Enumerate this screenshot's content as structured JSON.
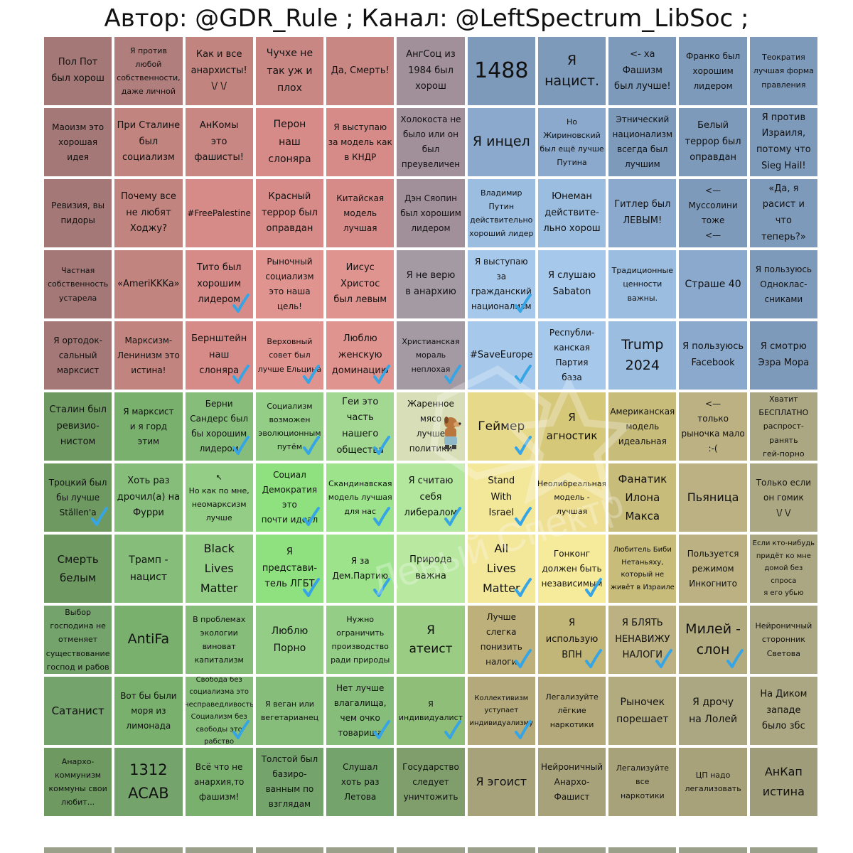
{
  "title": "Автор: @GDR_Rule ; Канал: @LeftSpectrum_LibSoc ;",
  "colors": {
    "auth_left_dark": "#a87c7c",
    "auth_left": "#cf8a8a",
    "auth_center": "#a0909a",
    "auth_right_dark": "#7e9cbd",
    "auth_right": "#9bbde0",
    "lib_left_dark": "#74a36c",
    "lib_left": "#86c97d",
    "lib_left_bright": "#8fd67f",
    "lib_right_dark": "#b3b083",
    "lib_right": "#f0e28c",
    "checkmark": "#36a5e6",
    "watermark": "Левый Спектр"
  },
  "rows": [
    [
      {
        "text": "Пол Пот\nбыл хорош",
        "bg": "#a47876",
        "fs": 13,
        "check": false
      },
      {
        "text": "Я против любой\nсобственности,\nдаже личной",
        "bg": "#b07e7c",
        "fs": 11,
        "check": false
      },
      {
        "text": "Как и все\nанархисты!\n\\/ \\/",
        "bg": "#c2847f",
        "fs": 13,
        "check": false
      },
      {
        "text": "Чучхе не\nтак уж и\nплох",
        "bg": "#c98784",
        "fs": 14,
        "check": false
      },
      {
        "text": "Да, Смерть!",
        "bg": "#c98784",
        "fs": 13,
        "check": false
      },
      {
        "text": "АнгСоц из\n1984 был\nхорош",
        "bg": "#a18f9a",
        "fs": 13,
        "check": false
      },
      {
        "text": "1488",
        "bg": "#7e9aba",
        "fs": 30,
        "check": false
      },
      {
        "text": "Я\nнацист.",
        "bg": "#7e9aba",
        "fs": 19,
        "check": false
      },
      {
        "text": "<- ха\nФашизм\nбыл лучше!",
        "bg": "#7e9aba",
        "fs": 13,
        "check": false
      },
      {
        "text": "Франко был\nхорошим\nлидером",
        "bg": "#7e9aba",
        "fs": 12,
        "check": false
      },
      {
        "text": "Теократия\nлучшая форма\nправления",
        "bg": "#7e9aba",
        "fs": 11,
        "check": false
      }
    ],
    [
      {
        "text": "Маоизм это\nхорошая\nидея",
        "bg": "#a47876",
        "fs": 12,
        "check": false
      },
      {
        "text": "При Сталине\nбыл\nсоциализм",
        "bg": "#c2847f",
        "fs": 13,
        "check": false
      },
      {
        "text": "АнКомы\nэто\nфашисты!",
        "bg": "#c98784",
        "fs": 13,
        "check": false
      },
      {
        "text": "Перон\nнаш\nслоняра",
        "bg": "#d68b88",
        "fs": 14,
        "check": false
      },
      {
        "text": "Я выступаю\nза модель как\nв КНДР",
        "bg": "#d68b88",
        "fs": 12,
        "check": false
      },
      {
        "text": "Холокоста не\nбыло или он\nбыл\nпреувеличен",
        "bg": "#a18f9a",
        "fs": 12,
        "check": false
      },
      {
        "text": "Я инцел",
        "bg": "#8aa9cc",
        "fs": 19,
        "check": false
      },
      {
        "text": "Но\nЖириновский\nбыл ещё лучше\nПутина",
        "bg": "#8aa9cc",
        "fs": 11,
        "check": false
      },
      {
        "text": "Этнический\nнационализм\nвсегда был\nлучшим",
        "bg": "#7e9aba",
        "fs": 12,
        "check": false
      },
      {
        "text": "Белый\nтеррор был\nоправдан",
        "bg": "#7e9aba",
        "fs": 13,
        "check": false
      },
      {
        "text": "Я против\nИзраиля,\nпотому что\nSieg Hail!",
        "bg": "#7e9aba",
        "fs": 13,
        "check": false
      }
    ],
    [
      {
        "text": "Ревизия, вы\nпидоры",
        "bg": "#a47876",
        "fs": 12,
        "check": false
      },
      {
        "text": "Почему все\nне любят\nХоджу?",
        "bg": "#c2847f",
        "fs": 13,
        "check": false
      },
      {
        "text": "#FreePalestine",
        "bg": "#d68b88",
        "fs": 12,
        "check": false
      },
      {
        "text": "Красный\nтеррор был\nоправдан",
        "bg": "#d68b88",
        "fs": 13,
        "check": false
      },
      {
        "text": "Китайская\nмодель\nлучшая",
        "bg": "#d68b88",
        "fs": 12,
        "check": false
      },
      {
        "text": "Дэн Сяопин\nбыл хорошим\nлидером",
        "bg": "#a18f9a",
        "fs": 12,
        "check": false
      },
      {
        "text": "Владимир\nПутин\nдействительно\nхороший лидер",
        "bg": "#9bbde0",
        "fs": 11,
        "check": false
      },
      {
        "text": "Юнеман\nдействите-\nльно хорош",
        "bg": "#9bbde0",
        "fs": 13,
        "check": false
      },
      {
        "text": "Гитлер был\nЛЕВЫМ!",
        "bg": "#8aa9cc",
        "fs": 13,
        "check": false
      },
      {
        "text": "<—\nМуссолини\nтоже\n<—",
        "bg": "#7e9aba",
        "fs": 12,
        "check": false
      },
      {
        "text": "«Да, я\nрасист и\nчто\nтеперь?»",
        "bg": "#7e9aba",
        "fs": 13,
        "check": false
      }
    ],
    [
      {
        "text": "Частная\nсобственность\nустарела",
        "bg": "#a47876",
        "fs": 11,
        "check": false
      },
      {
        "text": "«AmeriKKKa»",
        "bg": "#c2847f",
        "fs": 13,
        "check": false
      },
      {
        "text": "Тито был\nхорошим\nлидером",
        "bg": "#d68b88",
        "fs": 13,
        "check": true
      },
      {
        "text": "Рыночный\nсоциализм\nэто наша\nцель!",
        "bg": "#e09490",
        "fs": 12,
        "check": false
      },
      {
        "text": "Иисус\nХристос\nбыл левым",
        "bg": "#e09490",
        "fs": 13,
        "check": false
      },
      {
        "text": "Я не верю\nв анархию",
        "bg": "#a49aa4",
        "fs": 13,
        "check": false
      },
      {
        "text": "Я выступаю\nза\nгражданский\nнационализм",
        "bg": "#a6c8ea",
        "fs": 12,
        "check": true
      },
      {
        "text": "Я слушаю\nSabaton",
        "bg": "#a6c8ea",
        "fs": 13,
        "check": false
      },
      {
        "text": "Традиционные\nценности\nважны.",
        "bg": "#9bbde0",
        "fs": 11,
        "check": false
      },
      {
        "text": "Страше 40",
        "bg": "#8aa9cc",
        "fs": 14,
        "check": false
      },
      {
        "text": "Я пользуюсь\nОдноклас-\nсниками",
        "bg": "#7e9aba",
        "fs": 12,
        "check": false
      }
    ],
    [
      {
        "text": "Я ортодок-\nсальный\nмарксист",
        "bg": "#a47876",
        "fs": 12,
        "check": false
      },
      {
        "text": "Марксизм-\nЛенинизм это\nистина!",
        "bg": "#c2847f",
        "fs": 12,
        "check": false
      },
      {
        "text": "Бернштейн\nнаш\nслоняра",
        "bg": "#d68b88",
        "fs": 13,
        "check": true
      },
      {
        "text": "Верховный\nсовет был\nлучше Ельцина",
        "bg": "#e09490",
        "fs": 11,
        "check": true
      },
      {
        "text": "Люблю\nженскую\nдоминацию",
        "bg": "#e09490",
        "fs": 13,
        "check": true
      },
      {
        "text": "Христианская\nмораль\nнеплохая",
        "bg": "#a49aa4",
        "fs": 11,
        "check": true
      },
      {
        "text": "#SaveEurope",
        "bg": "#a6c8ea",
        "fs": 13,
        "check": true
      },
      {
        "text": "Республи-\nканская\nПартия\nбаза",
        "bg": "#a6c8ea",
        "fs": 12,
        "check": false
      },
      {
        "text": "Trump\n2024",
        "bg": "#9bbde0",
        "fs": 19,
        "check": false
      },
      {
        "text": "Я пользуюсь\nFacebook",
        "bg": "#8aa9cc",
        "fs": 13,
        "check": false
      },
      {
        "text": "Я смотрю\nЭзра Мора",
        "bg": "#7e9aba",
        "fs": 13,
        "check": false
      }
    ],
    [
      {
        "text": "Сталин был\nревизио-\nнистом",
        "bg": "#6e9a62",
        "fs": 13,
        "check": false
      },
      {
        "text": "Я марксист\nи я горд\nэтим",
        "bg": "#7ab06e",
        "fs": 12,
        "check": false
      },
      {
        "text": "Берни\nСандерс был\nбы хорошим\nлидером",
        "bg": "#86bd7a",
        "fs": 12,
        "check": true
      },
      {
        "text": "Социализм\nвозможен\nэволюционным\nпутём",
        "bg": "#94cd86",
        "fs": 11,
        "check": true
      },
      {
        "text": "Геи это\nчасть\nнашего\nобщества",
        "bg": "#a3d892",
        "fs": 13,
        "check": true
      },
      {
        "text": "Жаренное\nмясо\nлучше\nполитики",
        "bg": "#d8dfb8",
        "fs": 12,
        "check": false,
        "dog": true
      },
      {
        "text": "Геймер",
        "bg": "#e7d98a",
        "fs": 17,
        "check": true
      },
      {
        "text": "Я\nагностик",
        "bg": "#d6c879",
        "fs": 15,
        "check": false
      },
      {
        "text": "Американская\nмодель\nидеальная",
        "bg": "#c8bc7a",
        "fs": 12,
        "check": false
      },
      {
        "text": "<—\nтолько\nрыночка мало\n:-(",
        "bg": "#bbb182",
        "fs": 12,
        "check": false
      },
      {
        "text": "Хватит\nБЕСПЛАТНО\nраспрост-\nранять\nгей-порно",
        "bg": "#aba782",
        "fs": 11,
        "check": false
      }
    ],
    [
      {
        "text": "Троцкий был\nбы лучше\nStällen'a",
        "bg": "#6e9a62",
        "fs": 12,
        "check": true
      },
      {
        "text": "Хоть раз\nдрочил(а) на\nФурри",
        "bg": "#86bd7a",
        "fs": 13,
        "check": false
      },
      {
        "text": "↖\nНо как по мне,\nнеомарксизм\nлучше",
        "bg": "#94cd86",
        "fs": 11,
        "check": false
      },
      {
        "text": "Социал\nДемократия\nэто\nпочти идеал",
        "bg": "#8fe07e",
        "fs": 12,
        "check": true
      },
      {
        "text": "Скандинавская\nмодель лучшая\nдля нас",
        "bg": "#9de38c",
        "fs": 11,
        "check": true
      },
      {
        "text": "Я считаю\nсебя\nлибералом",
        "bg": "#b3e79d",
        "fs": 13,
        "check": true
      },
      {
        "text": "Stand\nWith\nIsrael",
        "bg": "#f3e79a",
        "fs": 13,
        "check": true
      },
      {
        "text": "Неолибреальная\nмодель -\nлучшая",
        "bg": "#eedf92",
        "fs": 11,
        "check": false
      },
      {
        "text": "Фанатик\nИлона\nМакса",
        "bg": "#c8bc7a",
        "fs": 15,
        "check": false
      },
      {
        "text": "Пьяница",
        "bg": "#bbb182",
        "fs": 16,
        "check": false
      },
      {
        "text": "Только если\nон гомик\n\\/ \\/",
        "bg": "#aba782",
        "fs": 12,
        "check": false
      }
    ],
    [
      {
        "text": "Смерть\nбелым",
        "bg": "#6e9a62",
        "fs": 15,
        "check": false
      },
      {
        "text": "Трамп -\nнацист",
        "bg": "#86bd7a",
        "fs": 14,
        "check": false
      },
      {
        "text": "Black\nLives\nMatter",
        "bg": "#94cd86",
        "fs": 16,
        "check": false
      },
      {
        "text": "Я\nпредстави-\nтель ЛГБТ",
        "bg": "#8fe07e",
        "fs": 13,
        "check": true
      },
      {
        "text": "Я за\nДем.Партию",
        "bg": "#9de38c",
        "fs": 12,
        "check": true
      },
      {
        "text": "Природа\nважна",
        "bg": "#b9e8a0",
        "fs": 13,
        "check": false
      },
      {
        "text": "All\nLives\nMatter",
        "bg": "#f3e79a",
        "fs": 16,
        "check": true
      },
      {
        "text": "Гонконг\nдолжен быть\nнезависимым",
        "bg": "#f6ea9b",
        "fs": 12,
        "check": true
      },
      {
        "text": "Любитель Биби\nНетаньяху,\nкоторый не\nживёт в Израиле",
        "bg": "#c8bc7a",
        "fs": 10,
        "check": false
      },
      {
        "text": "Пользуется\nрежимом\nИнкогнито",
        "bg": "#bbb182",
        "fs": 12,
        "check": false
      },
      {
        "text": "Если кто-нибудь\nпридёт ко мне\nдомой без спроса\nя его убью",
        "bg": "#aba782",
        "fs": 10,
        "check": false
      }
    ],
    [
      {
        "text": "Выбор\nгосподина не\nотменяет\nсуществование\nгоспод и рабов",
        "bg": "#74a36c",
        "fs": 11,
        "check": false
      },
      {
        "text": "AntiFa",
        "bg": "#7ab06e",
        "fs": 19,
        "check": false
      },
      {
        "text": "В проблемах\nэкологии\nвиноват\nкапитализм",
        "bg": "#86bd7a",
        "fs": 11,
        "check": false
      },
      {
        "text": "Люблю\nПорно",
        "bg": "#94cd86",
        "fs": 14,
        "check": false
      },
      {
        "text": "Нужно\nограничить\nпроизводство\nради природы",
        "bg": "#94cd86",
        "fs": 11,
        "check": false
      },
      {
        "text": "Я\nатеист",
        "bg": "#9bcc83",
        "fs": 17,
        "check": false
      },
      {
        "text": "Лучше\nслегка\nпонизить\nналоги",
        "bg": "#bdb07a",
        "fs": 12,
        "check": true
      },
      {
        "text": "Я\nиспользую\nВПН",
        "bg": "#c2b578",
        "fs": 13,
        "check": true
      },
      {
        "text": "Я БЛЯТЬ\nНЕНАВИЖУ\nНАЛОГИ",
        "bg": "#bbb182",
        "fs": 13,
        "check": true
      },
      {
        "text": "Милей -\nслон",
        "bg": "#b3ab80",
        "fs": 19,
        "check": true
      },
      {
        "text": "Нейроничный\nсторонник\nСветова",
        "bg": "#aba782",
        "fs": 11,
        "check": false
      }
    ],
    [
      {
        "text": "Сатанист",
        "bg": "#74a36c",
        "fs": 15,
        "check": false
      },
      {
        "text": "Вот бы были\nморя из\nлимонада",
        "bg": "#7ab06e",
        "fs": 12,
        "check": false
      },
      {
        "text": "Свобода без\nсоциализма это\nнесправедливость\nСоциализм без\nсвободы это\nрабство",
        "bg": "#86bd7a",
        "fs": 10,
        "check": true
      },
      {
        "text": "Я веган или\nвегетарианец",
        "bg": "#86bd7a",
        "fs": 11,
        "check": false
      },
      {
        "text": "Нет лучше\nвлагалища,\nчем очко\nтоварища",
        "bg": "#86bd7a",
        "fs": 12,
        "check": true
      },
      {
        "text": "Я\nиндивидуалист",
        "bg": "#8fbe78",
        "fs": 11,
        "check": true
      },
      {
        "text": "Коллективизм\nуступает\nиндивидуализму",
        "bg": "#b3a97a",
        "fs": 10,
        "check": true
      },
      {
        "text": "Легализуйте\nлёгкие\nнаркотики",
        "bg": "#b3a97a",
        "fs": 11,
        "check": false
      },
      {
        "text": "Рыночек\nпорешает",
        "bg": "#b3ab80",
        "fs": 14,
        "check": false
      },
      {
        "text": "Я дрочу\nна Лолей",
        "bg": "#aba782",
        "fs": 14,
        "check": false
      },
      {
        "text": "На Диком\nзападе\nбыло збс",
        "bg": "#aba782",
        "fs": 13,
        "check": false
      }
    ],
    [
      {
        "text": "Анархо-\nкоммунизм\nкоммуны свои\nлюбит...",
        "bg": "#6e9a62",
        "fs": 11,
        "check": false
      },
      {
        "text": "1312\nACAB",
        "bg": "#74a36c",
        "fs": 21,
        "check": false
      },
      {
        "text": "Всё что не\nанархия,то\nфашизм!",
        "bg": "#7ab06e",
        "fs": 12,
        "check": false
      },
      {
        "text": "Толстой был\nбазиро-\nванным по\nвзглядам",
        "bg": "#74a36c",
        "fs": 12,
        "check": false
      },
      {
        "text": "Слушал\nхоть раз\nЛетова",
        "bg": "#74a36c",
        "fs": 12,
        "check": false
      },
      {
        "text": "Государство\nследует\nуничтожить",
        "bg": "#7f9e6b",
        "fs": 12,
        "check": false
      },
      {
        "text": "Я эгоист",
        "bg": "#a8a27a",
        "fs": 16,
        "check": false
      },
      {
        "text": "Нейроничный\nАнархо-\nФашист",
        "bg": "#a8a27a",
        "fs": 12,
        "check": false
      },
      {
        "text": "Легализуйте\nвсе\nнаркотики",
        "bg": "#a8a27a",
        "fs": 11,
        "check": false
      },
      {
        "text": "ЦП надо\nлегализовать",
        "bg": "#a8a27a",
        "fs": 11,
        "check": false
      },
      {
        "text": "АнКап\nистина",
        "bg": "#9f9c7a",
        "fs": 16,
        "check": false
      }
    ]
  ]
}
